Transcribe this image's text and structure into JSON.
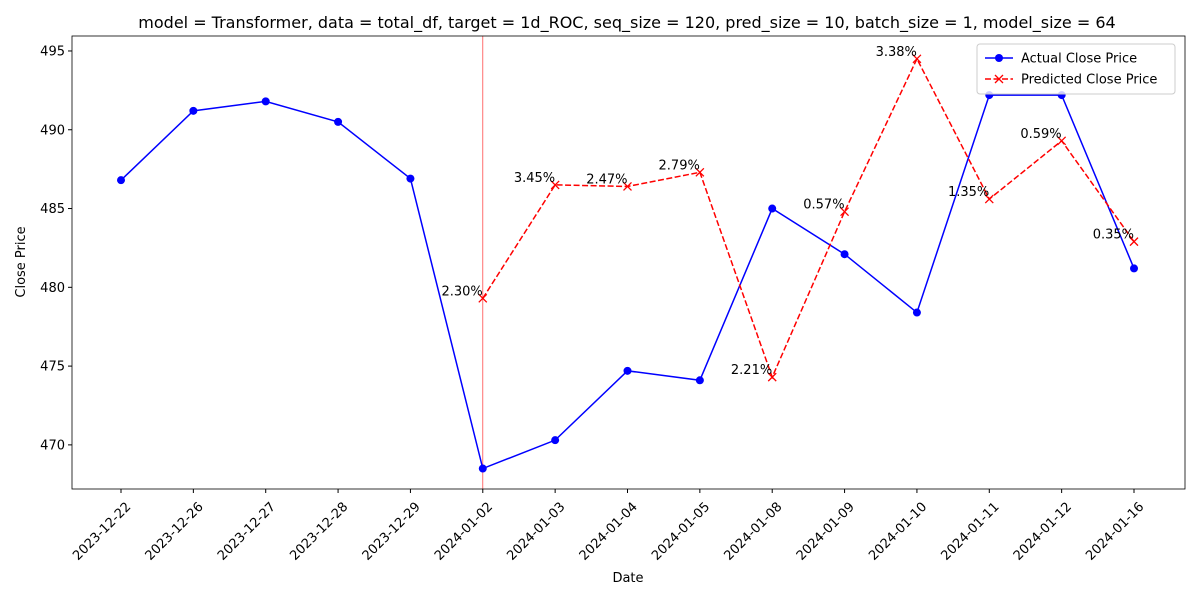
{
  "chart_data": {
    "type": "line",
    "title": "model = Transformer, data = total_df, target = 1d_ROC, seq_size = 120, pred_size = 10, batch_size = 1, model_size = 64",
    "x_label": "Date",
    "y_label": "Close Price",
    "categories": [
      "2023-12-22",
      "2023-12-26",
      "2023-12-27",
      "2023-12-28",
      "2023-12-29",
      "2024-01-02",
      "2024-01-03",
      "2024-01-04",
      "2024-01-05",
      "2024-01-08",
      "2024-01-09",
      "2024-01-10",
      "2024-01-11",
      "2024-01-12",
      "2024-01-16"
    ],
    "series": [
      {
        "name": "Actual Close Price",
        "color": "#0000ff",
        "marker": "o",
        "dash": false,
        "values": [
          486.8,
          491.2,
          491.8,
          490.5,
          486.9,
          468.5,
          470.3,
          474.7,
          474.1,
          485.0,
          482.1,
          478.4,
          492.2,
          492.2,
          481.2
        ]
      },
      {
        "name": "Predicted Close Price",
        "color": "#ff0000",
        "marker": "x",
        "dash": true,
        "values": [
          null,
          null,
          null,
          null,
          null,
          479.3,
          486.5,
          486.4,
          487.3,
          474.3,
          484.8,
          494.5,
          485.6,
          489.3,
          482.9
        ]
      }
    ],
    "annotations": [
      {
        "category": "2024-01-02",
        "text": "2.30%"
      },
      {
        "category": "2024-01-03",
        "text": "3.45%"
      },
      {
        "category": "2024-01-04",
        "text": "2.47%"
      },
      {
        "category": "2024-01-05",
        "text": "2.79%"
      },
      {
        "category": "2024-01-08",
        "text": "2.21%"
      },
      {
        "category": "2024-01-09",
        "text": "0.57%"
      },
      {
        "category": "2024-01-10",
        "text": "3.38%"
      },
      {
        "category": "2024-01-11",
        "text": "1.35%"
      },
      {
        "category": "2024-01-12",
        "text": "0.59%"
      },
      {
        "category": "2024-01-16",
        "text": "0.35%"
      }
    ],
    "vline": {
      "category": "2024-01-02",
      "color": "#ff0000"
    },
    "ylim": [
      467.2,
      495.95
    ],
    "yticks": [
      470,
      475,
      480,
      485,
      490,
      495
    ],
    "grid": false,
    "legend": "upper right"
  }
}
